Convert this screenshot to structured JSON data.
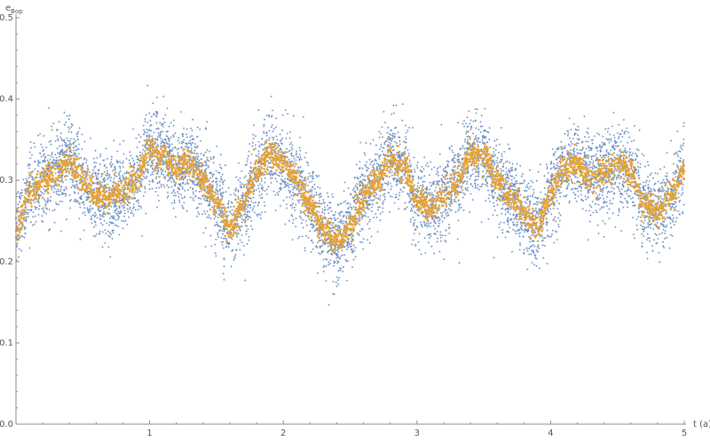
{
  "chart_data": {
    "type": "scatter",
    "title": "",
    "xlabel": "t (a)",
    "ylabel_main": "e",
    "ylabel_sub": "Bop",
    "xlim": [
      0,
      5
    ],
    "ylim": [
      0,
      0.5
    ],
    "x_ticks": [
      1,
      2,
      3,
      4,
      5
    ],
    "x_minor_step": 0.2,
    "y_ticks": [
      0.0,
      0.1,
      0.2,
      0.3,
      0.4,
      0.5
    ],
    "y_minor_step": 0.02,
    "grid": false,
    "legend": "none",
    "series": [
      {
        "color": "#5b7fb8",
        "marker": "small-plus",
        "mean_curve": {
          "x": [
            0.0,
            0.1,
            0.2,
            0.3,
            0.4,
            0.5,
            0.6,
            0.7,
            0.8,
            0.9,
            1.0,
            1.1,
            1.2,
            1.3,
            1.4,
            1.5,
            1.6,
            1.7,
            1.8,
            1.9,
            2.0,
            2.1,
            2.2,
            2.3,
            2.4,
            2.5,
            2.6,
            2.7,
            2.8,
            2.9,
            3.0,
            3.1,
            3.2,
            3.3,
            3.4,
            3.5,
            3.6,
            3.7,
            3.8,
            3.9,
            4.0,
            4.1,
            4.2,
            4.3,
            4.4,
            4.5,
            4.6,
            4.7,
            4.8,
            4.9,
            5.0
          ],
          "y": [
            0.24,
            0.285,
            0.3,
            0.31,
            0.325,
            0.3,
            0.28,
            0.28,
            0.285,
            0.3,
            0.34,
            0.33,
            0.315,
            0.32,
            0.3,
            0.275,
            0.24,
            0.27,
            0.31,
            0.335,
            0.32,
            0.3,
            0.27,
            0.24,
            0.225,
            0.245,
            0.28,
            0.3,
            0.325,
            0.32,
            0.275,
            0.265,
            0.28,
            0.3,
            0.33,
            0.33,
            0.3,
            0.28,
            0.26,
            0.24,
            0.28,
            0.315,
            0.32,
            0.3,
            0.31,
            0.32,
            0.31,
            0.27,
            0.26,
            0.28,
            0.315
          ]
        },
        "spread": 0.045,
        "n_points": 7000
      },
      {
        "color": "#e8a02c",
        "marker": "dot",
        "mean_curve": "same-as-series-1",
        "spread": 0.012,
        "n_points": 3000
      }
    ]
  }
}
